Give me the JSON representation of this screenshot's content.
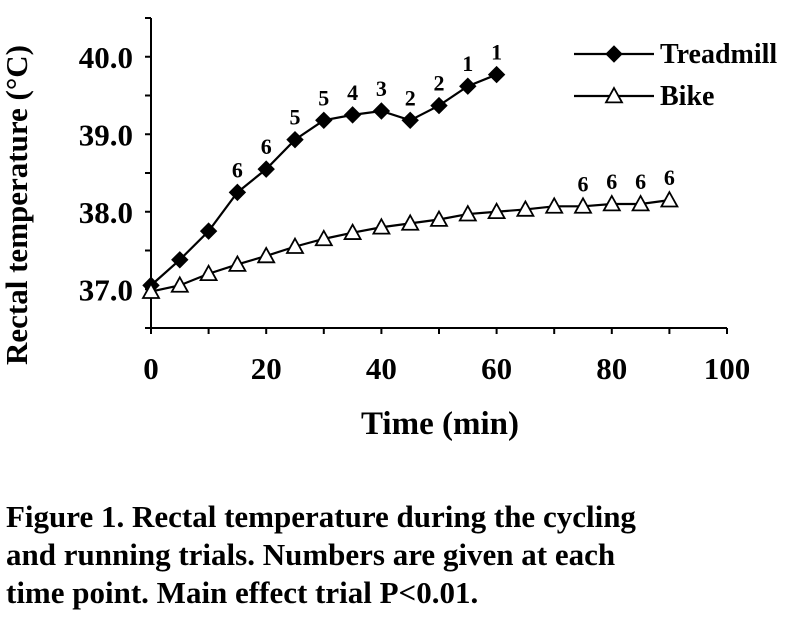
{
  "chart_data": {
    "type": "line",
    "xlabel": "Time (min)",
    "ylabel": "Rectal temperature (°C)",
    "xlim": [
      0,
      100
    ],
    "ylim": [
      36.5,
      40.5
    ],
    "xticks": [
      "0",
      "20",
      "40",
      "60",
      "80",
      "100"
    ],
    "yticks": [
      "37.0",
      "38.0",
      "39.0",
      "40.0"
    ],
    "ytick_values": [
      37.0,
      38.0,
      39.0,
      40.0
    ],
    "xtick_values": [
      0,
      20,
      40,
      60,
      80,
      100
    ],
    "grid": false,
    "legend_position": "top-right",
    "series": [
      {
        "name": "Treadmill",
        "marker": "filled-diamond",
        "x": [
          0,
          5,
          10,
          15,
          20,
          25,
          30,
          35,
          40,
          45,
          50,
          55,
          60
        ],
        "y": [
          37.05,
          37.38,
          37.75,
          38.25,
          38.55,
          38.93,
          39.18,
          39.25,
          39.3,
          39.18,
          39.37,
          39.62,
          39.77
        ],
        "labels": [
          "",
          "",
          "",
          "6",
          "6",
          "5",
          "5",
          "4",
          "3",
          "2",
          "2",
          "1",
          "1"
        ]
      },
      {
        "name": "Bike",
        "marker": "open-triangle",
        "x": [
          0,
          5,
          10,
          15,
          20,
          25,
          30,
          35,
          40,
          45,
          50,
          55,
          60,
          65,
          70,
          75,
          80,
          85,
          90
        ],
        "y": [
          36.97,
          37.05,
          37.2,
          37.32,
          37.43,
          37.55,
          37.65,
          37.73,
          37.8,
          37.85,
          37.9,
          37.97,
          38.0,
          38.03,
          38.07,
          38.07,
          38.1,
          38.1,
          38.15
        ],
        "labels": [
          "",
          "",
          "",
          "",
          "",
          "",
          "",
          "",
          "",
          "",
          "",
          "",
          "",
          "",
          "",
          "6",
          "6",
          "6",
          "6"
        ]
      }
    ]
  },
  "caption": {
    "line1": "Figure 1. Rectal temperature during the cycling",
    "line2": "and running trials. Numbers are given at each",
    "line3": "time point. Main effect trial P<0.01."
  }
}
